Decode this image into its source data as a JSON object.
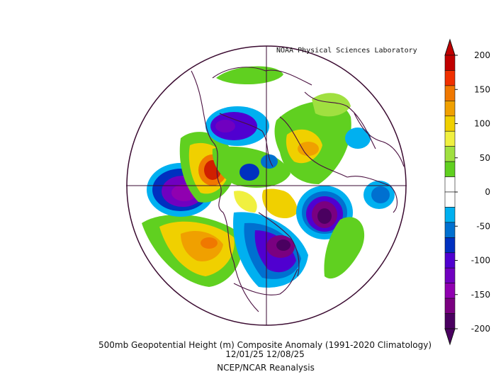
{
  "credit": "NOAA Physical Sciences Laboratory",
  "caption": {
    "line1": "500mb Geopotential Height (m) Composite Anomaly (1991-2020 Climatology)",
    "line2": "12/01/25 12/08/25",
    "line3": "NCEP/NCAR Reanalysis"
  },
  "colorbar": {
    "ticks": [
      "200",
      "150",
      "100",
      "50",
      "0",
      "-50",
      "-100",
      "-150",
      "-200"
    ],
    "colors": [
      "#c00000",
      "#f03000",
      "#f07800",
      "#f0a000",
      "#f0d000",
      "#f0f040",
      "#a0e040",
      "#60d020",
      "#ffffff",
      "#ffffff",
      "#00b0f0",
      "#0070d0",
      "#0030c0",
      "#5000d0",
      "#7000c0",
      "#9000b0",
      "#7a0080",
      "#4a0060"
    ]
  }
}
